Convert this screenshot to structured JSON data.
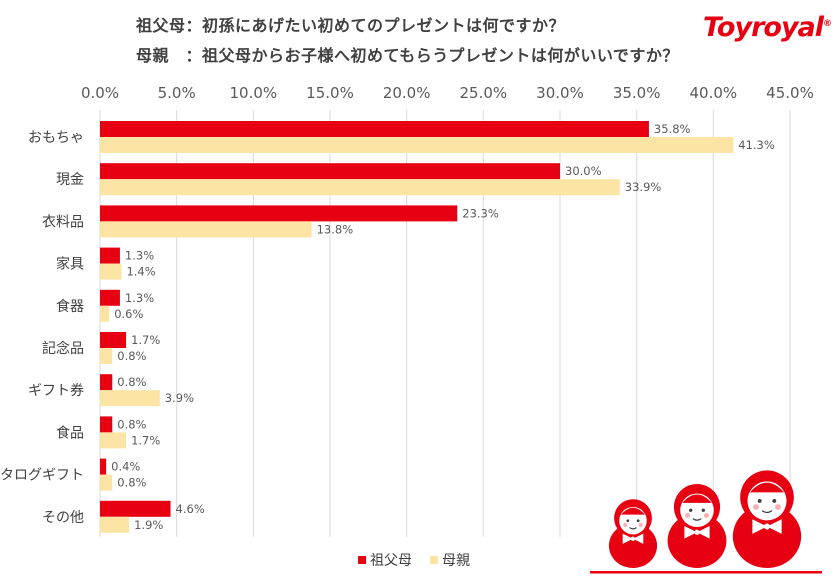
{
  "header": {
    "title_line1": "祖父母：初孫にあげたい初めてのプレゼントは何ですか？",
    "title_line2": "母親　：祖父母からお子様へ初めてもらうプレゼントは何がいいですか？",
    "logo_text": "Toyroyal",
    "logo_mark": "®"
  },
  "colors": {
    "grandparent": "#e60012",
    "mother": "#fce4a5",
    "grid": "#d9d9d9",
    "doll_red": "#e60012"
  },
  "chart_data": {
    "type": "bar",
    "orientation": "horizontal",
    "categories": [
      "おもちゃ",
      "現金",
      "衣料品",
      "家具",
      "食器",
      "記念品",
      "ギフト券",
      "食品",
      "カタログギフト",
      "その他"
    ],
    "series": [
      {
        "name": "祖父母",
        "values": [
          35.8,
          30.0,
          23.3,
          1.3,
          1.3,
          1.7,
          0.8,
          0.8,
          0.4,
          4.6
        ],
        "labels": [
          "35.8%",
          "30.0%",
          "23.3%",
          "1.3%",
          "1.3%",
          "1.7%",
          "0.8%",
          "0.8%",
          "0.4%",
          "4.6%"
        ]
      },
      {
        "name": "母親",
        "values": [
          41.3,
          33.9,
          13.8,
          1.4,
          0.6,
          0.8,
          3.9,
          1.7,
          0.8,
          1.9
        ],
        "labels": [
          "41.3%",
          "33.9%",
          "13.8%",
          "1.4%",
          "0.6%",
          "0.8%",
          "3.9%",
          "1.7%",
          "0.8%",
          "1.9%"
        ]
      }
    ],
    "xlim": [
      0,
      45
    ],
    "x_ticks": [
      "0.0%",
      "5.0%",
      "10.0%",
      "15.0%",
      "20.0%",
      "25.0%",
      "30.0%",
      "35.0%",
      "40.0%",
      "45.0%"
    ],
    "grid": true,
    "axis_position": "top",
    "legend_position": "bottom"
  },
  "illustration": {
    "icon": "matryoshka-dolls-icon"
  }
}
